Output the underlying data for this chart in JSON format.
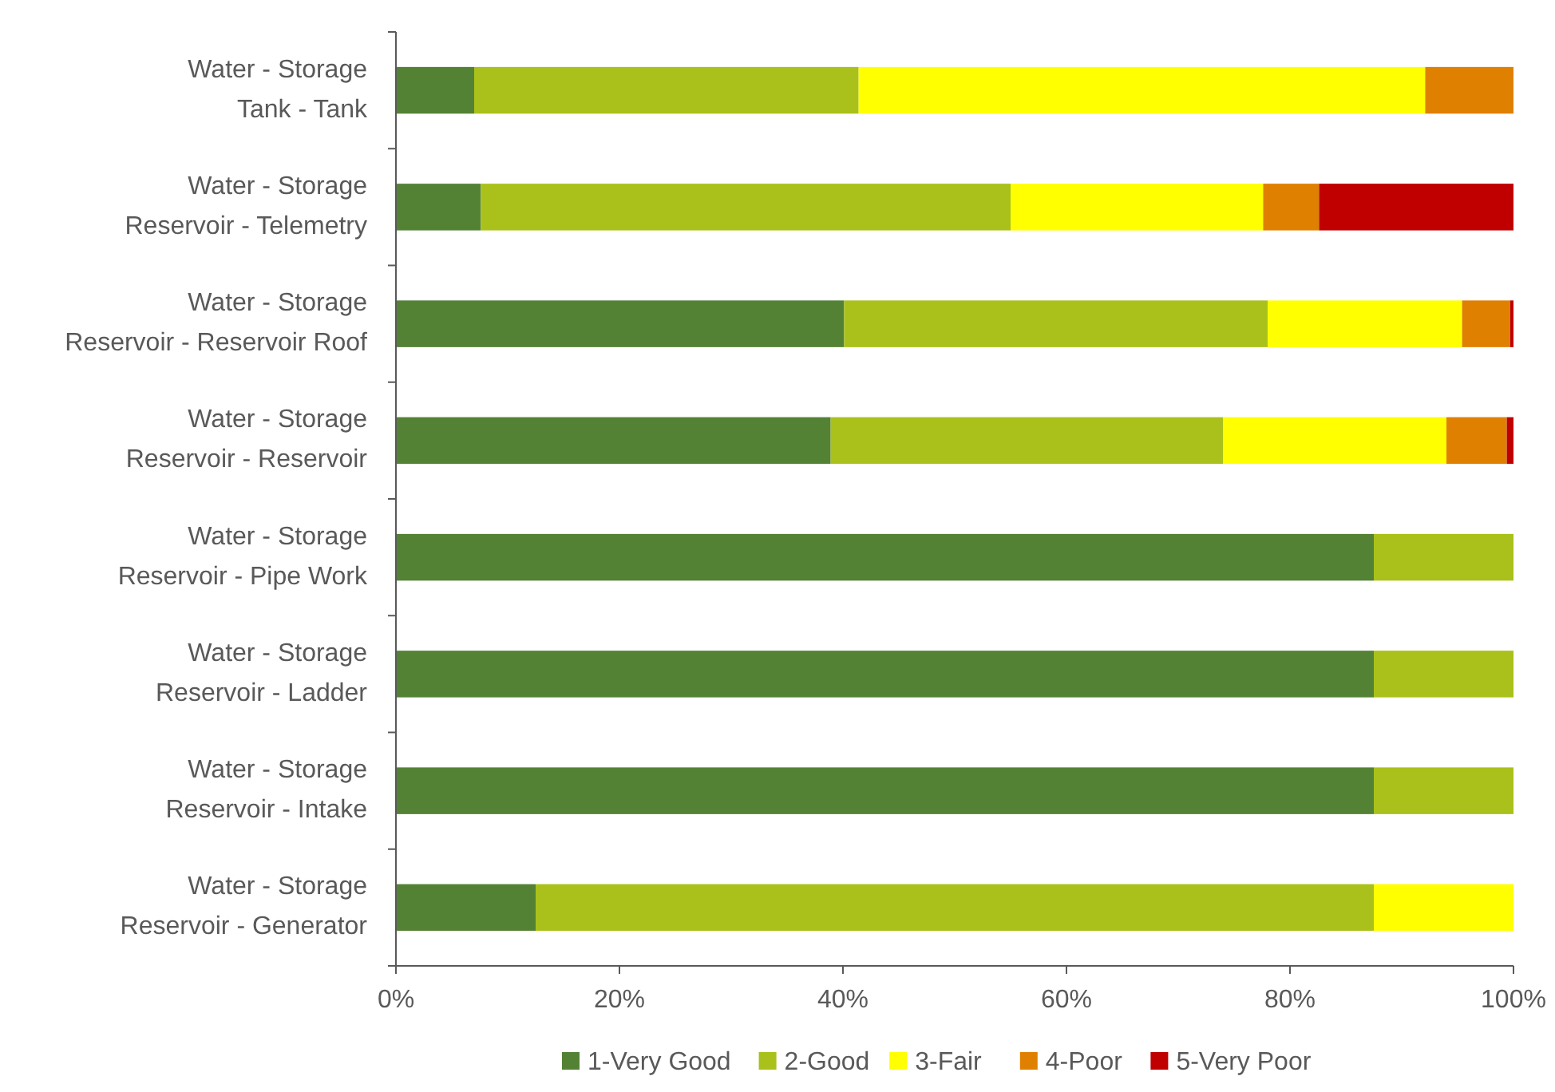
{
  "chart_data": {
    "type": "bar",
    "orientation": "horizontal",
    "stacked": true,
    "categories": [
      "Water - Storage\nTank - Tank",
      "Water - Storage\nReservoir - Telemetry",
      "Water - Storage\nReservoir - Reservoir Roof",
      "Water - Storage\nReservoir - Reservoir",
      "Water - Storage\nReservoir - Pipe Work",
      "Water - Storage\nReservoir - Ladder",
      "Water - Storage\nReservoir - Intake",
      "Water - Storage\nReservoir - Generator"
    ],
    "series": [
      {
        "name": "1-Very Good",
        "color": "#548235",
        "values": [
          7,
          7.6,
          40.1,
          38.9,
          87.5,
          87.5,
          87.5,
          12.5
        ]
      },
      {
        "name": "2-Good",
        "color": "#a9c11a",
        "values": [
          34.4,
          47.4,
          37.9,
          35.1,
          12.5,
          12.5,
          12.5,
          75
        ]
      },
      {
        "name": "3-Fair",
        "color": "#ffff00",
        "values": [
          50.7,
          22.6,
          17.4,
          20,
          0,
          0,
          0,
          12.5
        ]
      },
      {
        "name": "4-Poor",
        "color": "#e08000",
        "values": [
          7.9,
          5,
          4.3,
          5.4,
          0,
          0,
          0,
          0
        ]
      },
      {
        "name": "5-Very Poor",
        "color": "#c00000",
        "values": [
          0,
          17.4,
          0.3,
          0.6,
          0,
          0,
          0,
          0
        ]
      }
    ],
    "xlim": [
      0,
      100
    ],
    "xticks": [
      {
        "value": 0,
        "label": "0%"
      },
      {
        "value": 20,
        "label": "20%"
      },
      {
        "value": 40,
        "label": "40%"
      },
      {
        "value": 60,
        "label": "60%"
      },
      {
        "value": 80,
        "label": "80%"
      },
      {
        "value": 100,
        "label": "100%"
      }
    ],
    "grid": false,
    "legend": "bottom"
  }
}
